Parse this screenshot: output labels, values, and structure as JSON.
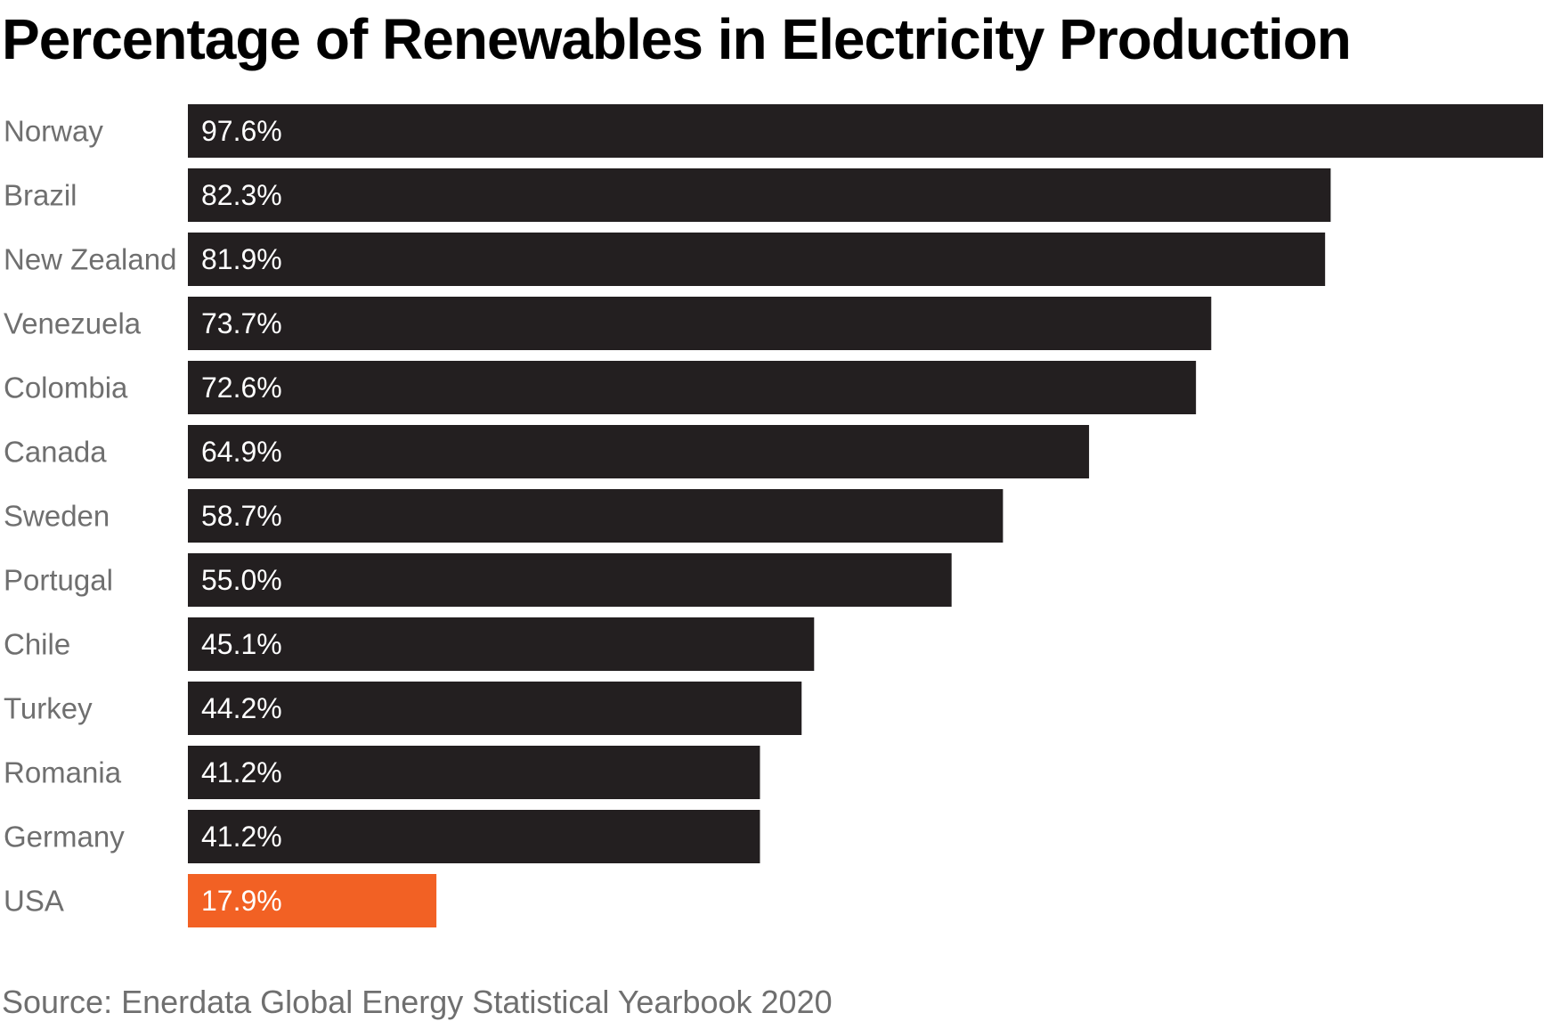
{
  "chart_data": {
    "type": "bar",
    "orientation": "horizontal",
    "title": "Percentage of Renewables in Electricity Production",
    "source": "Source: Enerdata Global Energy Statistical Yearbook 2020",
    "categories": [
      "Norway",
      "Brazil",
      "New Zealand",
      "Venezuela",
      "Colombia",
      "Canada",
      "Sweden",
      "Portugal",
      "Chile",
      "Turkey",
      "Romania",
      "Germany",
      "USA"
    ],
    "values": [
      97.6,
      82.3,
      81.9,
      73.7,
      72.6,
      64.9,
      58.7,
      55.0,
      45.1,
      44.2,
      41.2,
      41.2,
      17.9
    ],
    "value_labels": [
      "97.6%",
      "82.3%",
      "81.9%",
      "73.7%",
      "72.6%",
      "64.9%",
      "58.7%",
      "55.0%",
      "45.1%",
      "44.2%",
      "41.2%",
      "41.2%",
      "17.9%"
    ],
    "highlight_category": "USA",
    "colors": {
      "bar": "#231f20",
      "highlight": "#f26124",
      "value_text": "#ffffff",
      "category_text": "#6f6f6f"
    },
    "xlim": [
      0,
      97.6
    ],
    "grid": false,
    "legend": "none"
  }
}
